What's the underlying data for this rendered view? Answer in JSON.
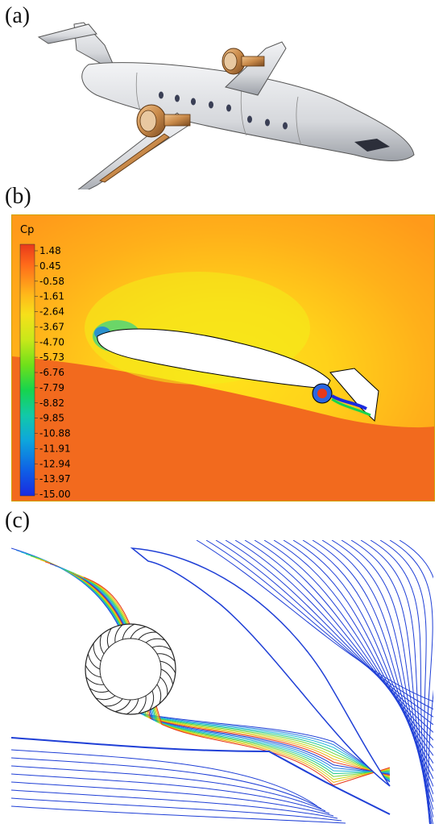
{
  "panels": {
    "a": {
      "label": "(a)"
    },
    "b": {
      "label": "(b)"
    },
    "c": {
      "label": "(c)"
    }
  },
  "colorbar": {
    "title": "Cp",
    "ticks": [
      "1.48",
      "0.45",
      "-0.58",
      "-1.61",
      "-2.64",
      "-3.67",
      "-4.70",
      "-5.73",
      "-6.76",
      "-7.79",
      "-8.82",
      "-9.85",
      "-10.88",
      "-11.91",
      "-12.94",
      "-13.97",
      "-15.00"
    ],
    "colors": [
      "#e8391b",
      "#ff6a1a",
      "#ff9a1a",
      "#ffc21a",
      "#f4e21a",
      "#c8e81a",
      "#6fe01a",
      "#16d44e",
      "#12c9a8",
      "#0ea6dc",
      "#0f5fe6",
      "#1a2ae0"
    ]
  },
  "colors": {
    "field_high": "#f26a1e",
    "field_mid": "#ffc21a",
    "streamline_blue": "#1f3fd6",
    "aircraft_body": "#d9dbde",
    "nacelle_copper": "#c98a4a"
  }
}
